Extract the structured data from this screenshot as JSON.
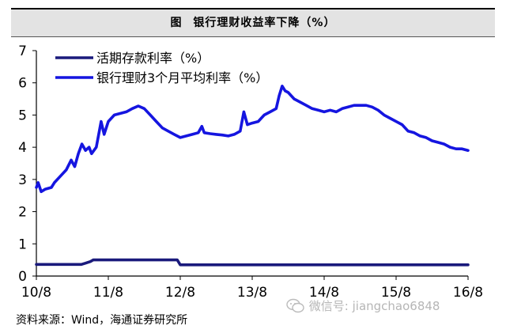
{
  "header": {
    "prefix": "图",
    "title": "银行理财收益率下降（%）"
  },
  "source": "资料来源：Wind，海通证券研究所",
  "watermark": "微信号: jiangchao6848",
  "chart_data": {
    "type": "line",
    "title": "银行理财收益率下降（%）",
    "xlabel": "",
    "ylabel": "",
    "ylim": [
      0,
      7
    ],
    "y_ticks": [
      0,
      1,
      2,
      3,
      4,
      5,
      6,
      7
    ],
    "x_ticks": [
      "10/8",
      "11/8",
      "12/8",
      "13/8",
      "14/8",
      "15/8",
      "16/8"
    ],
    "x_tick_positions": [
      0,
      12,
      24,
      36,
      48,
      60,
      72
    ],
    "xlim": [
      0,
      72
    ],
    "grid": false,
    "legend_position": "top-left",
    "series": [
      {
        "name": "活期存款利率（%）",
        "color": "#1a1a7c",
        "points": [
          [
            0,
            0.36
          ],
          [
            6,
            0.36
          ],
          [
            7.5,
            0.36
          ],
          [
            8.2,
            0.4
          ],
          [
            9,
            0.45
          ],
          [
            9.5,
            0.5
          ],
          [
            16,
            0.5
          ],
          [
            22,
            0.5
          ],
          [
            23.5,
            0.5
          ],
          [
            24,
            0.35
          ],
          [
            72,
            0.35
          ]
        ]
      },
      {
        "name": "银行理财3个月平均利率（%）",
        "color": "#1515e0",
        "points": [
          [
            0,
            2.75
          ],
          [
            0.3,
            2.9
          ],
          [
            0.8,
            2.62
          ],
          [
            1.5,
            2.7
          ],
          [
            2.5,
            2.75
          ],
          [
            3,
            2.9
          ],
          [
            4,
            3.1
          ],
          [
            5,
            3.3
          ],
          [
            5.8,
            3.6
          ],
          [
            6.4,
            3.4
          ],
          [
            7,
            3.8
          ],
          [
            7.6,
            4.1
          ],
          [
            8.2,
            3.9
          ],
          [
            8.8,
            4.0
          ],
          [
            9.2,
            3.8
          ],
          [
            10,
            4.0
          ],
          [
            10.8,
            4.8
          ],
          [
            11.3,
            4.4
          ],
          [
            12,
            4.8
          ],
          [
            13,
            5.0
          ],
          [
            14,
            5.05
          ],
          [
            15,
            5.1
          ],
          [
            16,
            5.2
          ],
          [
            17,
            5.28
          ],
          [
            18,
            5.2
          ],
          [
            19,
            5.0
          ],
          [
            20,
            4.8
          ],
          [
            21,
            4.6
          ],
          [
            22,
            4.5
          ],
          [
            23,
            4.4
          ],
          [
            24,
            4.3
          ],
          [
            25,
            4.35
          ],
          [
            26,
            4.4
          ],
          [
            27,
            4.45
          ],
          [
            27.6,
            4.65
          ],
          [
            28,
            4.45
          ],
          [
            29,
            4.42
          ],
          [
            30,
            4.4
          ],
          [
            31,
            4.38
          ],
          [
            32,
            4.35
          ],
          [
            33,
            4.4
          ],
          [
            34,
            4.5
          ],
          [
            34.6,
            5.1
          ],
          [
            35.2,
            4.7
          ],
          [
            36,
            4.75
          ],
          [
            37,
            4.8
          ],
          [
            38,
            5.0
          ],
          [
            39,
            5.1
          ],
          [
            40,
            5.2
          ],
          [
            40.5,
            5.6
          ],
          [
            41,
            5.9
          ],
          [
            41.5,
            5.75
          ],
          [
            42,
            5.7
          ],
          [
            43,
            5.5
          ],
          [
            44,
            5.4
          ],
          [
            45,
            5.3
          ],
          [
            46,
            5.2
          ],
          [
            47,
            5.15
          ],
          [
            48,
            5.1
          ],
          [
            49,
            5.15
          ],
          [
            50,
            5.1
          ],
          [
            51,
            5.2
          ],
          [
            52,
            5.25
          ],
          [
            53,
            5.3
          ],
          [
            54,
            5.3
          ],
          [
            55,
            5.3
          ],
          [
            56,
            5.25
          ],
          [
            57,
            5.15
          ],
          [
            58,
            5.0
          ],
          [
            59,
            4.9
          ],
          [
            60,
            4.8
          ],
          [
            61,
            4.7
          ],
          [
            62,
            4.5
          ],
          [
            63,
            4.45
          ],
          [
            64,
            4.35
          ],
          [
            65,
            4.3
          ],
          [
            66,
            4.2
          ],
          [
            67,
            4.15
          ],
          [
            68,
            4.1
          ],
          [
            69,
            4.0
          ],
          [
            70,
            3.95
          ],
          [
            71,
            3.95
          ],
          [
            72,
            3.9
          ]
        ]
      }
    ]
  }
}
